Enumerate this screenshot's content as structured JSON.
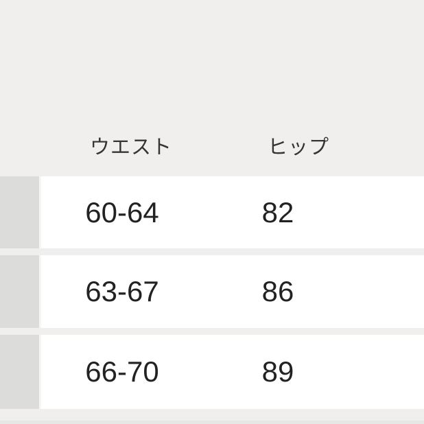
{
  "theme": {
    "bg": "#f0efee",
    "row-bg": "#ffffff",
    "label-cell-bg": "#dcdcdb",
    "cell-gap": "#f6f6f5",
    "bottom-strip": "#e7e7e6",
    "header-text": "#343436",
    "value-text": "#222222"
  },
  "table": {
    "columns": [
      {
        "label": "ウエスト"
      },
      {
        "label": "ヒップ"
      }
    ],
    "rows": [
      {
        "waist": "60-64",
        "hip": "82"
      },
      {
        "waist": "63-67",
        "hip": "86"
      },
      {
        "waist": "66-70",
        "hip": "89"
      }
    ]
  }
}
